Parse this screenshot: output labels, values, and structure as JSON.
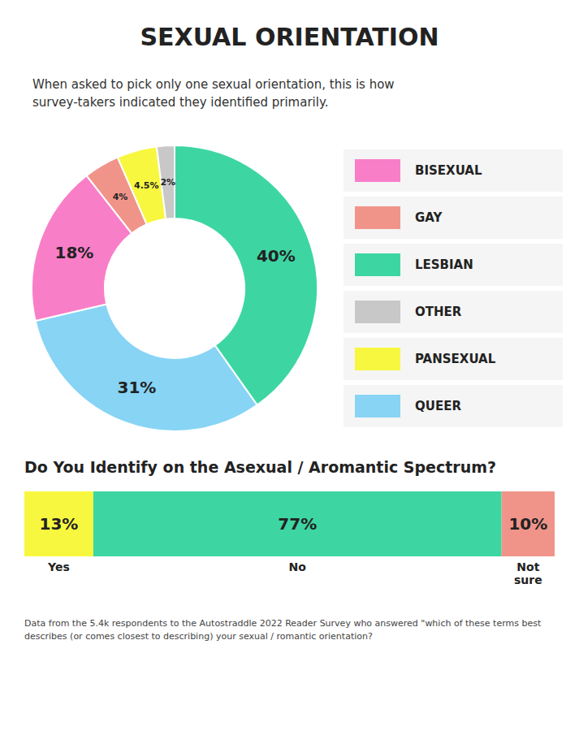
{
  "chart_data": [
    {
      "type": "pie",
      "title": "SEXUAL ORIENTATION",
      "subtitle": "When asked to pick only one sexual orientation, this is how\nsurvey-takers indicated they identified primarily.",
      "categories": [
        "LESBIAN",
        "QUEER",
        "BISEXUAL",
        "GAY",
        "PANSEXUAL",
        "OTHER"
      ],
      "values": [
        40,
        31,
        18,
        4,
        4.5,
        2
      ],
      "value_labels": [
        "40%",
        "31%",
        "18%",
        "4%",
        "4.5%",
        "2%"
      ],
      "colors": [
        "#3dd6a3",
        "#87d4f5",
        "#f97ec8",
        "#f0948a",
        "#f7f740",
        "#c8c8c8"
      ],
      "data_labels": true,
      "legend": "right"
    },
    {
      "type": "bar",
      "title": "Do You Identify on the Asexual / Aromantic Spectrum?",
      "orientation": "horizontal",
      "stacked": true,
      "series": [
        {
          "name": "Yes",
          "color": "#f7f740",
          "values": [
            13
          ],
          "value_labels": [
            "13%"
          ]
        },
        {
          "name": "No",
          "color": "#3dd6a3",
          "values": [
            77
          ],
          "value_labels": [
            "77%"
          ]
        },
        {
          "name": "Not\nsure",
          "color": "#f0948a",
          "values": [
            10
          ],
          "value_labels": [
            "10%"
          ]
        }
      ],
      "xlim": [
        0,
        100
      ],
      "data_labels": true,
      "tick_labels": false,
      "annotations": [
        "Data from the 5.4k respondents to the Autostraddle 2022 Reader Survey who answered \"which of these terms best\ndescribes (or comes closest to describing) your sexual / romantic orientation?"
      ]
    }
  ]
}
